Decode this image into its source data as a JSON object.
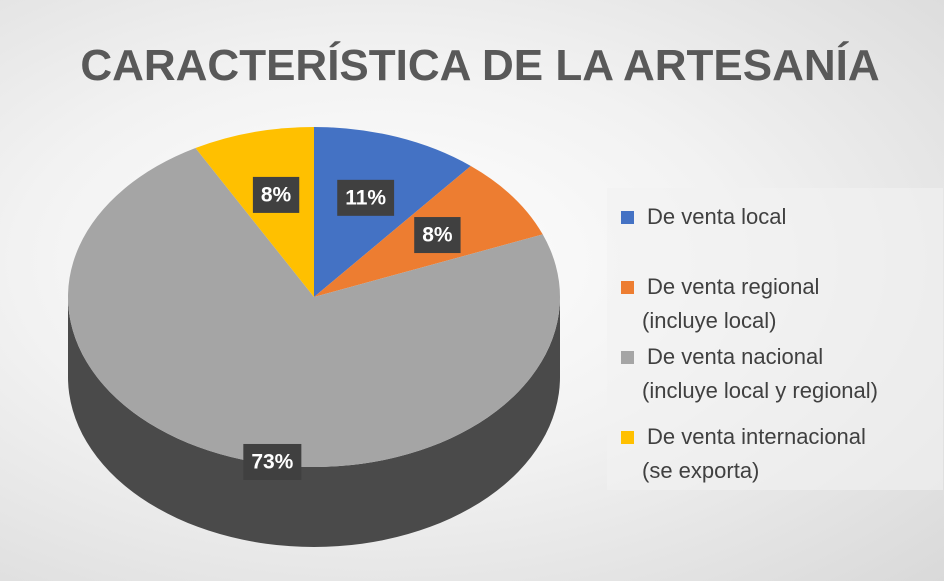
{
  "chart_data": {
    "type": "pie",
    "title": "CARACTERÍSTICA DE LA ARTESANÍA",
    "categories": [
      "De venta local",
      "De venta regional (incluye local)",
      "De venta nacional (incluye local y regional)",
      "De venta internacional (se exporta)"
    ],
    "values": [
      11,
      8,
      73,
      8
    ],
    "value_labels": [
      "11%",
      "8%",
      "73%",
      "8%"
    ],
    "colors": [
      "#4472c4",
      "#ed7d31",
      "#a5a5a5",
      "#ffc000"
    ],
    "legend": "right"
  }
}
